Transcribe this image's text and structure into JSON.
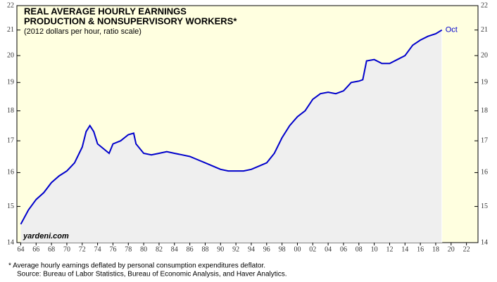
{
  "chart_data": {
    "type": "line",
    "title": [
      "REAL AVERAGE HOURLY EARNINGS",
      "PRODUCTION & NONSUPERVISORY WORKERS*"
    ],
    "subtitle": "(2012 dollars per hour, ratio scale)",
    "annotations": [
      "Oct",
      "yardeni.com"
    ],
    "footnotes": [
      "*  Average hourly earnings deflated by personal consumption expenditures deflator.",
      "Source: Bureau of Labor Statistics, Bureau of Economic Analysis, and Haver Analytics."
    ],
    "log_scale": true,
    "color": "#0000cc",
    "x": [
      1964,
      1965,
      1966,
      1967,
      1968,
      1969,
      1970,
      1971,
      1972,
      1972.5,
      1973,
      1973.5,
      1974,
      1975,
      1975.5,
      1976,
      1977,
      1978,
      1978.7,
      1979,
      1980,
      1981,
      1982,
      1983,
      1984,
      1985,
      1986,
      1987,
      1988,
      1989,
      1990,
      1991,
      1992,
      1993,
      1994,
      1995,
      1996,
      1997,
      1998,
      1999,
      2000,
      2001,
      2002,
      2003,
      2004,
      2005,
      2006,
      2007,
      2008,
      2008.5,
      2009,
      2010,
      2011,
      2012,
      2013,
      2014,
      2015,
      2016,
      2017,
      2018,
      2018.8
    ],
    "values": [
      14.5,
      14.9,
      15.2,
      15.4,
      15.7,
      15.9,
      16.05,
      16.3,
      16.8,
      17.3,
      17.5,
      17.3,
      16.9,
      16.7,
      16.6,
      16.9,
      17.0,
      17.2,
      17.25,
      16.9,
      16.6,
      16.55,
      16.6,
      16.65,
      16.6,
      16.55,
      16.5,
      16.4,
      16.3,
      16.2,
      16.1,
      16.05,
      16.05,
      16.05,
      16.1,
      16.2,
      16.3,
      16.6,
      17.1,
      17.5,
      17.8,
      18.0,
      18.4,
      18.6,
      18.65,
      18.6,
      18.7,
      19.0,
      19.05,
      19.1,
      19.8,
      19.85,
      19.7,
      19.7,
      19.85,
      20.0,
      20.4,
      20.6,
      20.75,
      20.85,
      21.0
    ],
    "xlim": [
      1963.5,
      2023.5
    ],
    "ylim": [
      14,
      22
    ],
    "yticks": [
      14,
      15,
      16,
      17,
      18,
      19,
      20,
      21,
      22
    ],
    "xticks": [
      {
        "value": 1964,
        "label": "64"
      },
      {
        "value": 1966,
        "label": "66"
      },
      {
        "value": 1968,
        "label": "68"
      },
      {
        "value": 1970,
        "label": "70"
      },
      {
        "value": 1972,
        "label": "72"
      },
      {
        "value": 1974,
        "label": "74"
      },
      {
        "value": 1976,
        "label": "76"
      },
      {
        "value": 1978,
        "label": "78"
      },
      {
        "value": 1980,
        "label": "80"
      },
      {
        "value": 1982,
        "label": "82"
      },
      {
        "value": 1984,
        "label": "84"
      },
      {
        "value": 1986,
        "label": "86"
      },
      {
        "value": 1988,
        "label": "88"
      },
      {
        "value": 1990,
        "label": "90"
      },
      {
        "value": 1992,
        "label": "92"
      },
      {
        "value": 1994,
        "label": "94"
      },
      {
        "value": 1996,
        "label": "96"
      },
      {
        "value": 1998,
        "label": "98"
      },
      {
        "value": 2000,
        "label": "00"
      },
      {
        "value": 2002,
        "label": "02"
      },
      {
        "value": 2004,
        "label": "04"
      },
      {
        "value": 2006,
        "label": "06"
      },
      {
        "value": 2008,
        "label": "08"
      },
      {
        "value": 2010,
        "label": "10"
      },
      {
        "value": 2012,
        "label": "12"
      },
      {
        "value": 2014,
        "label": "14"
      },
      {
        "value": 2016,
        "label": "16"
      },
      {
        "value": 2018,
        "label": "18"
      },
      {
        "value": 2020,
        "label": "20"
      },
      {
        "value": 2022,
        "label": "22"
      }
    ]
  }
}
